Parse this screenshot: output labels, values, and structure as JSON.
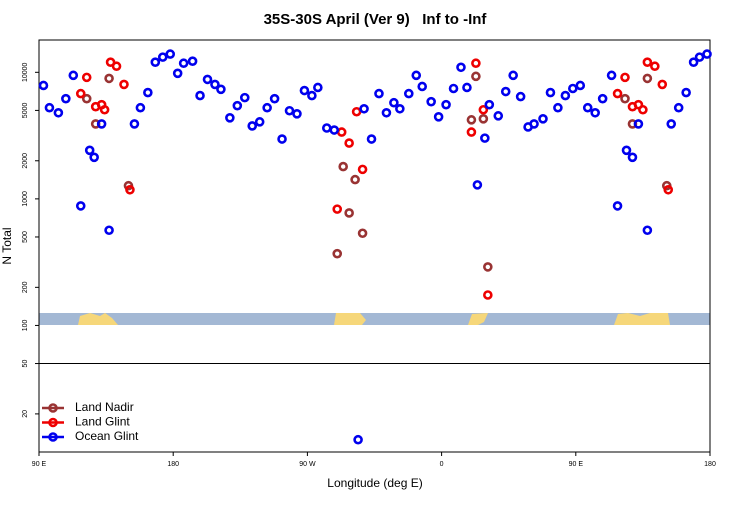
{
  "chart_data": {
    "type": "scatter",
    "title": "35S-30S April (Ver 9)   Inf to -Inf",
    "xlabel": "Longitude (deg E)",
    "ylabel": "N Total",
    "xlim": [
      90,
      540
    ],
    "xticks": [
      {
        "value": 90,
        "label": "90 E"
      },
      180,
      {
        "value": 270,
        "label": "90 W"
      },
      {
        "value": 360,
        "label": "0"
      },
      {
        "value": 450,
        "label": "90 E"
      },
      {
        "value": 540,
        "label": "180"
      }
    ],
    "ylim": [
      10,
      18000
    ],
    "log_y": true,
    "yticks": [
      20,
      50,
      100,
      200,
      500,
      1000,
      2000,
      5000,
      10000
    ],
    "hline": 50,
    "legend": "lower left",
    "series": [
      {
        "name": "Land Nadir",
        "color": "#993333",
        "x": [
          122,
          128,
          137,
          150,
          294,
          298,
          302,
          290,
          307,
          380,
          383,
          388,
          391,
          483,
          488,
          498,
          511
        ],
        "values": [
          6190,
          3910,
          8950,
          1270,
          1800,
          774,
          1420,
          369,
          535,
          4210,
          9290,
          4290,
          290,
          6190,
          3910,
          8950,
          1270
        ]
      },
      {
        "name": "Land Glint",
        "color": "#ee0000",
        "x": [
          118,
          122,
          128,
          132,
          134,
          138,
          142,
          147,
          151,
          293,
          298,
          303,
          307,
          290,
          383,
          380,
          388,
          391,
          478,
          483,
          488,
          492,
          495,
          498,
          503,
          508,
          512
        ],
        "values": [
          6790,
          9120,
          5350,
          5550,
          5060,
          12020,
          11170,
          8020,
          1180,
          3370,
          2760,
          4880,
          1710,
          830,
          11800,
          3370,
          5060,
          174,
          6790,
          9120,
          5350,
          5550,
          5060,
          12020,
          11170,
          8020,
          1180
        ]
      },
      {
        "name": "Ocean Glint",
        "color": "#0000ee",
        "x": [
          93,
          97,
          103,
          108,
          113,
          118,
          124,
          127,
          132,
          137,
          154,
          158,
          163,
          168,
          173,
          178,
          183,
          187,
          193,
          198,
          203,
          208,
          212,
          218,
          223,
          228,
          233,
          238,
          243,
          248,
          253,
          258,
          263,
          268,
          273,
          277,
          283,
          288,
          308,
          313,
          318,
          323,
          328,
          332,
          338,
          343,
          347,
          353,
          358,
          363,
          368,
          373,
          377,
          384,
          389,
          392,
          398,
          403,
          408,
          413,
          418,
          422,
          428,
          433,
          438,
          443,
          448,
          453,
          458,
          463,
          468,
          474,
          478,
          484,
          488,
          492,
          498,
          514,
          519,
          524,
          529,
          533,
          538,
          304
        ],
        "values": [
          7870,
          5250,
          4790,
          6190,
          9460,
          880,
          2420,
          2130,
          3910,
          565,
          3910,
          5250,
          6920,
          12020,
          13180,
          13930,
          9820,
          11800,
          12240,
          6550,
          8790,
          8020,
          7340,
          4370,
          5450,
          6310,
          3770,
          4060,
          5250,
          6190,
          2970,
          4970,
          4700,
          7180,
          6550,
          7590,
          3630,
          3500,
          5150,
          2970,
          6790,
          4790,
          5750,
          5150,
          6790,
          9460,
          7730,
          5860,
          4450,
          5550,
          7450,
          10960,
          7590,
          1290,
          3020,
          5550,
          4530,
          7050,
          9460,
          6430,
          3700,
          3910,
          4290,
          6920,
          5250,
          6550,
          7450,
          7870,
          5250,
          4790,
          6190,
          9460,
          880,
          2420,
          2130,
          3910,
          565,
          3910,
          5250,
          6920,
          12020,
          13180,
          13930,
          12.5
        ]
      }
    ]
  }
}
